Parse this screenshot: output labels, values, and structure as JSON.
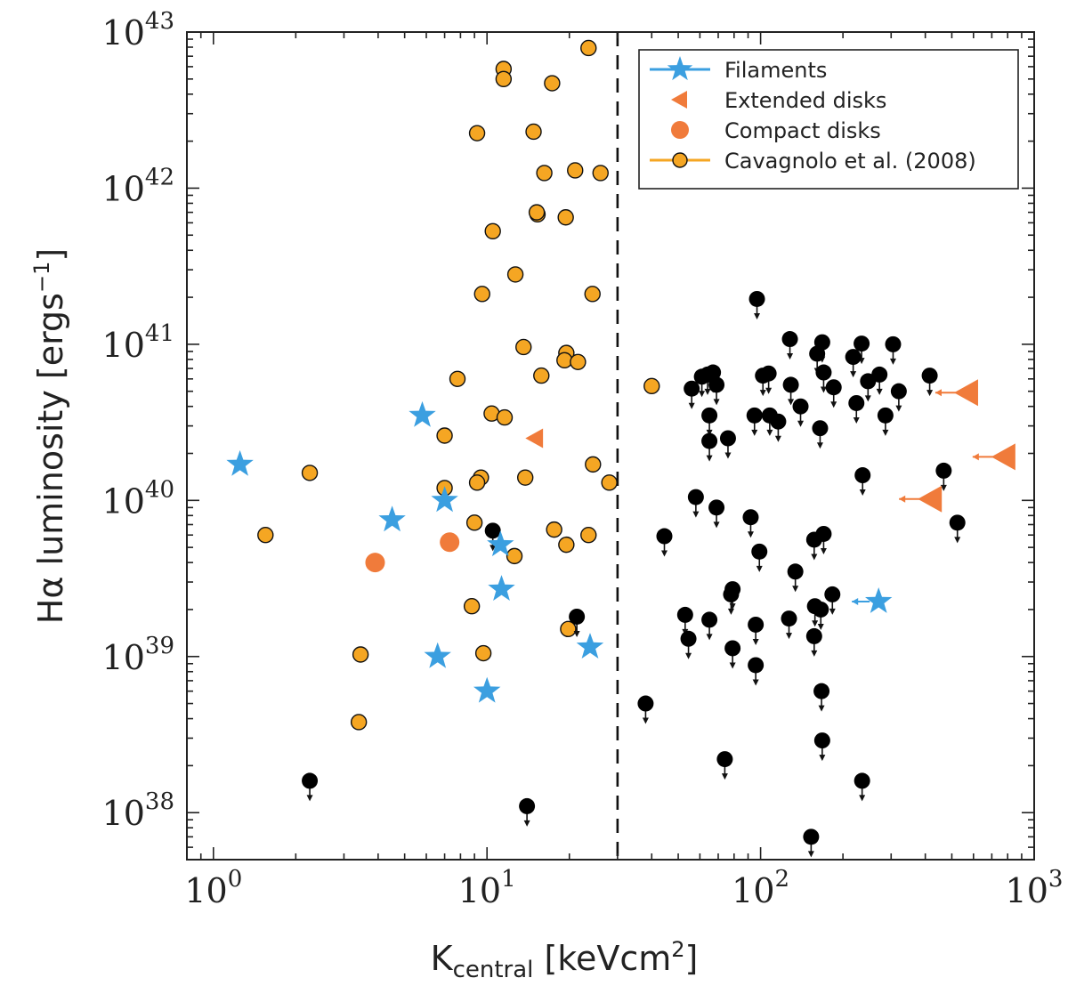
{
  "chart_data": {
    "type": "scatter",
    "xlabel_main": "K",
    "xlabel_sub": "central",
    "xlabel_unit": " [keVcm",
    "xlabel_unit_sup": "2",
    "xlabel_unit_end": "]",
    "ylabel_main": "Hα luminosity [ergs",
    "ylabel_sup": "−1",
    "ylabel_end": "]",
    "xscale": "log",
    "yscale": "log",
    "xlim": [
      0.8,
      1000
    ],
    "ylim": [
      5e+37,
      1e+43
    ],
    "x_ticks": [
      {
        "value": 1,
        "base": "10",
        "exp": "0"
      },
      {
        "value": 10,
        "base": "10",
        "exp": "1"
      },
      {
        "value": 100,
        "base": "10",
        "exp": "2"
      },
      {
        "value": 1000,
        "base": "10",
        "exp": "3"
      }
    ],
    "y_ticks": [
      {
        "value": 1e+38,
        "base": "10",
        "exp": "38"
      },
      {
        "value": 1e+39,
        "base": "10",
        "exp": "39"
      },
      {
        "value": 1e+40,
        "base": "10",
        "exp": "40"
      },
      {
        "value": 1e+41,
        "base": "10",
        "exp": "41"
      },
      {
        "value": 1e+42,
        "base": "10",
        "exp": "42"
      },
      {
        "value": 1e+43,
        "base": "10",
        "exp": "43"
      }
    ],
    "vline_x": 30,
    "legend_position": "top-right",
    "legend": [
      {
        "label": "Filaments",
        "marker": "star",
        "color": "#3b9fe0"
      },
      {
        "label": "Extended disks",
        "marker": "triangle-left",
        "color": "#f07b3b"
      },
      {
        "label": "Compact disks",
        "marker": "circle",
        "color": "#f07b3b"
      },
      {
        "label": "Cavagnolo et al.  (2008)",
        "marker": "circle-edge",
        "color": "#f5a623"
      }
    ],
    "colors": {
      "filaments": "#3b9fe0",
      "disks": "#f07b3b",
      "cavagnolo": "#f5a623",
      "upper_limits": "#000000"
    },
    "series": [
      {
        "name": "Filaments",
        "points": [
          [
            1.25,
            1.7e+40
          ],
          [
            4.5,
            7.5e+39
          ],
          [
            5.8,
            3.5e+40
          ],
          [
            7.0,
            1e+40
          ],
          [
            6.6,
            1e+39
          ],
          [
            11.2,
            5.2e+39
          ],
          [
            11.3,
            2.7e+39
          ],
          [
            10.0,
            6e+38
          ],
          [
            23.8,
            1.15e+39
          ]
        ],
        "upper_limit_points": [
          [
            270,
            2.25e+39
          ]
        ]
      },
      {
        "name": "Extended disks",
        "points": [
          [
            15.0,
            2.5e+40
          ]
        ],
        "upper_limit_points": [
          [
            570,
            4.9e+40
          ],
          [
            780,
            1.9e+40
          ],
          [
            420,
            1.02e+40
          ]
        ]
      },
      {
        "name": "Compact disks",
        "points": [
          [
            3.9,
            4e+39
          ],
          [
            7.3,
            5.4e+39
          ]
        ]
      },
      {
        "name": "Cavagnolo et al.  (2008)",
        "points": [
          [
            23.5,
            7.9e+42
          ],
          [
            11.5,
            5.8e+42
          ],
          [
            11.5,
            5e+42
          ],
          [
            17.3,
            4.7e+42
          ],
          [
            9.2,
            2.25e+42
          ],
          [
            14.8,
            2.3e+42
          ],
          [
            16.2,
            1.25e+42
          ],
          [
            21.0,
            1.3e+42
          ],
          [
            26.0,
            1.25e+42
          ],
          [
            15.3,
            6.8e+41
          ],
          [
            15.2,
            7e+41
          ],
          [
            19.4,
            6.5e+41
          ],
          [
            10.5,
            5.3e+41
          ],
          [
            12.7,
            2.8e+41
          ],
          [
            9.6,
            2.1e+41
          ],
          [
            24.3,
            2.1e+41
          ],
          [
            13.6,
            9.6e+40
          ],
          [
            19.5,
            8.8e+40
          ],
          [
            19.2,
            7.9e+40
          ],
          [
            21.5,
            7.7e+40
          ],
          [
            7.8,
            6e+40
          ],
          [
            15.8,
            6.3e+40
          ],
          [
            10.4,
            3.6e+40
          ],
          [
            11.6,
            3.4e+40
          ],
          [
            7.0,
            2.6e+40
          ],
          [
            2.25,
            1.5e+40
          ],
          [
            24.4,
            1.7e+40
          ],
          [
            28.0,
            1.3e+40
          ],
          [
            9.5,
            1.4e+40
          ],
          [
            9.2,
            1.3e+40
          ],
          [
            13.8,
            1.4e+40
          ],
          [
            7.0,
            1.2e+40
          ],
          [
            1.55,
            6e+39
          ],
          [
            9.0,
            7.2e+39
          ],
          [
            17.6,
            6.5e+39
          ],
          [
            23.5,
            6e+39
          ],
          [
            19.5,
            5.2e+39
          ],
          [
            12.6,
            4.4e+39
          ],
          [
            8.8,
            2.1e+39
          ],
          [
            19.8,
            1.5e+39
          ],
          [
            9.7,
            1.05e+39
          ],
          [
            3.45,
            1.03e+39
          ],
          [
            3.4,
            3.8e+38
          ],
          [
            40.0,
            5.4e+40
          ]
        ]
      },
      {
        "name": "upper limits",
        "points": [
          [
            97,
            1.95e+41
          ],
          [
            128,
            1.08e+41
          ],
          [
            168,
            1.03e+41
          ],
          [
            234,
            1.01e+41
          ],
          [
            305,
            1e+41
          ],
          [
            161,
            8.7e+40
          ],
          [
            218,
            8.3e+40
          ],
          [
            56,
            5.2e+40
          ],
          [
            61,
            6.2e+40
          ],
          [
            64,
            6.4e+40
          ],
          [
            67,
            6.6e+40
          ],
          [
            69,
            5.5e+40
          ],
          [
            102,
            6.3e+40
          ],
          [
            107,
            6.5e+40
          ],
          [
            129,
            5.5e+40
          ],
          [
            170,
            6.6e+40
          ],
          [
            185,
            5.3e+40
          ],
          [
            247,
            5.8e+40
          ],
          [
            272,
            6.4e+40
          ],
          [
            320,
            5e+40
          ],
          [
            415,
            6.3e+40
          ],
          [
            65,
            3.5e+40
          ],
          [
            65,
            2.4e+40
          ],
          [
            76,
            2.5e+40
          ],
          [
            95,
            3.5e+40
          ],
          [
            108,
            3.5e+40
          ],
          [
            116,
            3.2e+40
          ],
          [
            140,
            4e+40
          ],
          [
            165,
            2.9e+40
          ],
          [
            224,
            4.2e+40
          ],
          [
            286,
            3.5e+40
          ],
          [
            467,
            1.55e+40
          ],
          [
            236,
            1.45e+40
          ],
          [
            58,
            1.05e+40
          ],
          [
            69,
            9e+39
          ],
          [
            92,
            7.8e+39
          ],
          [
            44.5,
            5.9e+39
          ],
          [
            99,
            4.7e+39
          ],
          [
            157,
            5.6e+39
          ],
          [
            170,
            6.1e+39
          ],
          [
            524,
            7.2e+39
          ],
          [
            10.5,
            6.4e+39
          ],
          [
            134,
            3.5e+39
          ],
          [
            79,
            2.7e+39
          ],
          [
            78,
            2.5e+39
          ],
          [
            183,
            2.5e+39
          ],
          [
            158,
            2.1e+39
          ],
          [
            166,
            2e+39
          ],
          [
            21.3,
            1.8e+39
          ],
          [
            53,
            1.85e+39
          ],
          [
            65,
            1.72e+39
          ],
          [
            96,
            1.6e+39
          ],
          [
            127,
            1.75e+39
          ],
          [
            54.5,
            1.3e+39
          ],
          [
            79,
            1.13e+39
          ],
          [
            157,
            1.35e+39
          ],
          [
            96,
            8.8e+38
          ],
          [
            167,
            6e+38
          ],
          [
            38,
            5e+38
          ],
          [
            168,
            2.9e+38
          ],
          [
            74,
            2.2e+38
          ],
          [
            2.25,
            1.6e+38
          ],
          [
            235,
            1.6e+38
          ],
          [
            14.0,
            1.1e+38
          ],
          [
            153,
            7e+37
          ]
        ]
      }
    ]
  }
}
